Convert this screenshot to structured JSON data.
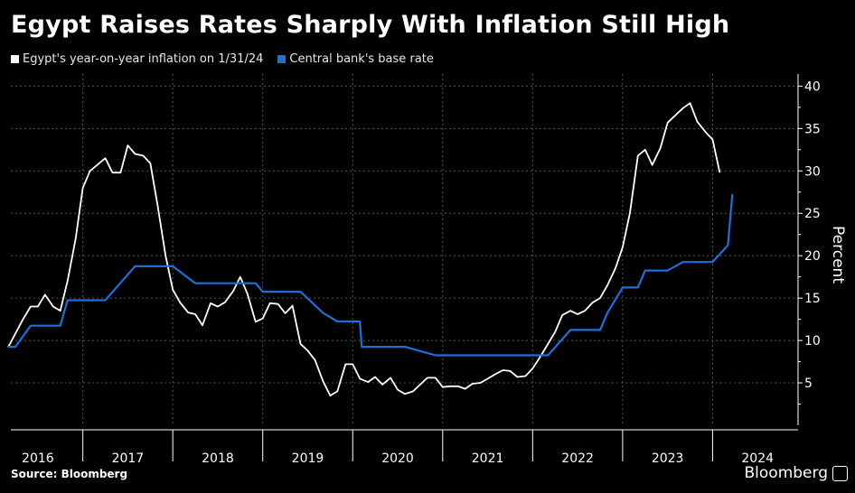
{
  "chart_data": {
    "type": "line",
    "title": "Egypt Raises Rates Sharply With Inflation Still High",
    "ylabel": "Percent",
    "xlabel": "",
    "ylim": [
      0,
      41
    ],
    "yticks": [
      5,
      10,
      15,
      20,
      25,
      30,
      35,
      40
    ],
    "xlim": [
      2015.7,
      2024.45
    ],
    "x_tick_labels": [
      {
        "label": "2016",
        "x": 2016.0
      },
      {
        "label": "2017",
        "x": 2017.0
      },
      {
        "label": "2018",
        "x": 2018.0
      },
      {
        "label": "2019",
        "x": 2019.0
      },
      {
        "label": "2020",
        "x": 2020.0
      },
      {
        "label": "2021",
        "x": 2021.0
      },
      {
        "label": "2022",
        "x": 2022.0
      },
      {
        "label": "2023",
        "x": 2023.0
      },
      {
        "label": "2024",
        "x": 2024.0
      }
    ],
    "grid": true,
    "legend_position": "top-left",
    "series": [
      {
        "name": "Egypt's year-on-year inflation on 1/31/24",
        "color": "#ffffff",
        "points": [
          [
            2015.67,
            9.2
          ],
          [
            2015.75,
            10.8
          ],
          [
            2015.83,
            12.4
          ],
          [
            2015.92,
            14.0
          ],
          [
            2016.0,
            14.0
          ],
          [
            2016.08,
            15.4
          ],
          [
            2016.17,
            14.0
          ],
          [
            2016.25,
            13.5
          ],
          [
            2016.33,
            17.0
          ],
          [
            2016.42,
            22.0
          ],
          [
            2016.5,
            28.0
          ],
          [
            2016.58,
            30.0
          ],
          [
            2016.67,
            30.8
          ],
          [
            2016.75,
            31.5
          ],
          [
            2016.83,
            29.8
          ],
          [
            2016.92,
            29.8
          ],
          [
            2017.0,
            33.0
          ],
          [
            2017.08,
            32.0
          ],
          [
            2017.17,
            31.8
          ],
          [
            2017.25,
            30.9
          ],
          [
            2017.33,
            26.0
          ],
          [
            2017.42,
            20.0
          ],
          [
            2017.5,
            16.0
          ],
          [
            2017.58,
            14.5
          ],
          [
            2017.67,
            13.3
          ],
          [
            2017.75,
            13.1
          ],
          [
            2017.83,
            11.8
          ],
          [
            2017.92,
            14.4
          ],
          [
            2018.0,
            14.0
          ],
          [
            2018.08,
            14.5
          ],
          [
            2018.17,
            15.8
          ],
          [
            2018.25,
            17.5
          ],
          [
            2018.33,
            15.5
          ],
          [
            2018.42,
            12.2
          ],
          [
            2018.5,
            12.6
          ],
          [
            2018.58,
            14.4
          ],
          [
            2018.67,
            14.3
          ],
          [
            2018.75,
            13.2
          ],
          [
            2018.83,
            14.1
          ],
          [
            2018.92,
            9.6
          ],
          [
            2019.0,
            8.8
          ],
          [
            2019.08,
            7.7
          ],
          [
            2019.17,
            5.2
          ],
          [
            2019.25,
            3.5
          ],
          [
            2019.33,
            4.0
          ],
          [
            2019.42,
            7.2
          ],
          [
            2019.5,
            7.2
          ],
          [
            2019.58,
            5.5
          ],
          [
            2019.67,
            5.1
          ],
          [
            2019.75,
            5.7
          ],
          [
            2019.83,
            4.8
          ],
          [
            2019.92,
            5.6
          ],
          [
            2020.0,
            4.2
          ],
          [
            2020.08,
            3.7
          ],
          [
            2020.17,
            4.0
          ],
          [
            2020.25,
            4.8
          ],
          [
            2020.33,
            5.6
          ],
          [
            2020.42,
            5.6
          ],
          [
            2020.5,
            4.5
          ],
          [
            2020.58,
            4.6
          ],
          [
            2020.67,
            4.6
          ],
          [
            2020.75,
            4.3
          ],
          [
            2020.83,
            4.9
          ],
          [
            2020.92,
            5.0
          ],
          [
            2021.0,
            5.5
          ],
          [
            2021.08,
            6.0
          ],
          [
            2021.17,
            6.5
          ],
          [
            2021.25,
            6.4
          ],
          [
            2021.33,
            5.7
          ],
          [
            2021.42,
            5.8
          ],
          [
            2021.5,
            6.7
          ],
          [
            2021.58,
            8.0
          ],
          [
            2021.67,
            9.6
          ],
          [
            2021.75,
            11.0
          ],
          [
            2021.83,
            13.0
          ],
          [
            2021.92,
            13.5
          ],
          [
            2022.0,
            13.1
          ],
          [
            2022.08,
            13.5
          ],
          [
            2022.17,
            14.5
          ],
          [
            2022.25,
            15.0
          ],
          [
            2022.33,
            16.5
          ],
          [
            2022.42,
            18.5
          ],
          [
            2022.5,
            21.0
          ],
          [
            2022.58,
            25.0
          ],
          [
            2022.67,
            31.8
          ],
          [
            2022.75,
            32.5
          ],
          [
            2022.83,
            30.7
          ],
          [
            2022.92,
            32.7
          ],
          [
            2023.0,
            35.7
          ],
          [
            2023.08,
            36.5
          ],
          [
            2023.17,
            37.4
          ],
          [
            2023.25,
            38.0
          ],
          [
            2023.33,
            35.8
          ],
          [
            2023.42,
            34.6
          ],
          [
            2023.5,
            33.7
          ],
          [
            2023.58,
            29.8
          ]
        ]
      },
      {
        "name": "Central bank's base rate",
        "color": "#1f6fd8",
        "points": [
          [
            2015.67,
            9.25
          ],
          [
            2015.75,
            9.25
          ],
          [
            2015.92,
            11.75
          ],
          [
            2016.25,
            11.75
          ],
          [
            2016.33,
            14.75
          ],
          [
            2016.75,
            14.75
          ],
          [
            2017.08,
            18.75
          ],
          [
            2017.5,
            18.75
          ],
          [
            2017.75,
            16.75
          ],
          [
            2018.25,
            16.75
          ],
          [
            2018.42,
            16.75
          ],
          [
            2018.5,
            15.75
          ],
          [
            2018.92,
            15.75
          ],
          [
            2019.17,
            13.25
          ],
          [
            2019.33,
            12.25
          ],
          [
            2019.58,
            12.25
          ],
          [
            2019.6,
            9.25
          ],
          [
            2020.0,
            9.25
          ],
          [
            2020.08,
            9.25
          ],
          [
            2020.25,
            8.75
          ],
          [
            2020.42,
            8.25
          ],
          [
            2021.5,
            8.25
          ],
          [
            2021.67,
            8.25
          ],
          [
            2021.92,
            11.25
          ],
          [
            2022.0,
            11.25
          ],
          [
            2022.25,
            11.25
          ],
          [
            2022.33,
            13.25
          ],
          [
            2022.5,
            16.25
          ],
          [
            2022.67,
            16.25
          ],
          [
            2022.75,
            18.25
          ],
          [
            2023.0,
            18.25
          ],
          [
            2023.17,
            19.25
          ],
          [
            2023.5,
            19.25
          ],
          [
            2023.67,
            21.25
          ],
          [
            2023.72,
            27.25
          ]
        ]
      }
    ]
  },
  "legend": {
    "inflation_label": "Egypt's year-on-year inflation on 1/31/24",
    "base_rate_label": "Central bank's base rate",
    "inflation_color": "#ffffff",
    "base_rate_color": "#1f6fd8"
  },
  "footer": {
    "source": "Source: Bloomberg",
    "brand": "Bloomberg"
  },
  "colors": {
    "background": "#000000",
    "grid": "#555555",
    "axis": "#ffffff"
  }
}
